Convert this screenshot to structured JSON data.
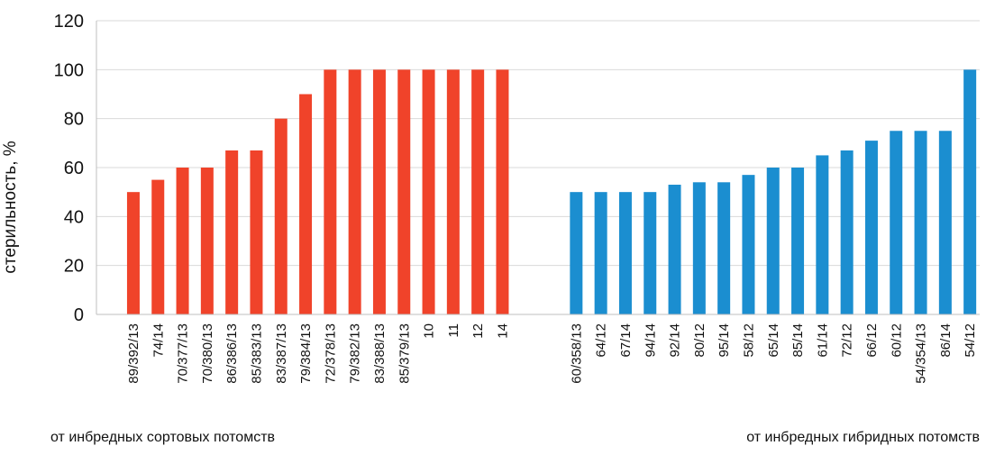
{
  "chart_data": {
    "type": "bar",
    "ylabel": "стерильность, %",
    "ylim": [
      0,
      120
    ],
    "yticks": [
      0,
      20,
      40,
      60,
      80,
      100,
      120
    ],
    "grid": true,
    "legend": "none",
    "groups": [
      {
        "label": "от инбредных сортовых потомств",
        "color": "#f0432a",
        "categories": [
          "89/392/13",
          "74/14",
          "70/377/13",
          "70/380/13",
          "86/386/13",
          "85/383/13",
          "83/387/13",
          "79/384/13",
          "72/378/13",
          "79/382/13",
          "83/388/13",
          "85/379/13",
          "10",
          "11",
          "12",
          "14"
        ],
        "values": [
          50,
          55,
          60,
          60,
          67,
          67,
          80,
          90,
          100,
          100,
          100,
          100,
          100,
          100,
          100,
          100
        ]
      },
      {
        "label": "от инбредных гибридных потомств",
        "color": "#1b8ed0",
        "categories": [
          "60/358/13",
          "64/12",
          "67/14",
          "94/14",
          "92/14",
          "80/12",
          "95/14",
          "58/12",
          "65/14",
          "85/14",
          "61/14",
          "72/12",
          "66/12",
          "60/12",
          "54/354/13",
          "86/14",
          "54/12"
        ],
        "values": [
          50,
          50,
          50,
          50,
          53,
          54,
          54,
          57,
          60,
          60,
          65,
          67,
          71,
          75,
          75,
          75,
          100
        ]
      }
    ]
  }
}
